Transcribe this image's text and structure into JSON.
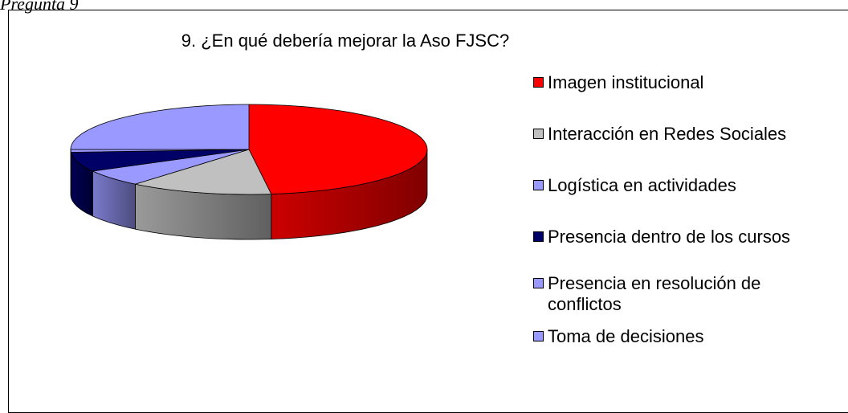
{
  "caption": "Pregunta 9",
  "chart_data": {
    "type": "pie3d",
    "title": "9. ¿En qué debería mejorar la Aso FJSC?",
    "categories": [
      "Imagen institucional",
      "Interacción en Redes Sociales",
      "Logística en actividades",
      "Presencia dentro de los cursos",
      "Presencia en resolución de conflictos",
      "Toma de decisiones"
    ],
    "values": [
      48,
      13,
      6,
      7,
      1,
      25
    ],
    "colors": [
      "#ff0000",
      "#c0c0c0",
      "#9999ff",
      "#000066",
      "#9999ff",
      "#9999ff"
    ],
    "legend": "right"
  }
}
